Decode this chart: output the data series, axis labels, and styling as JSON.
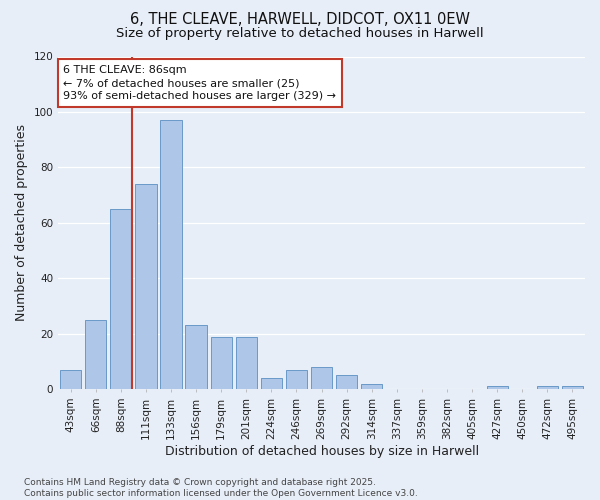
{
  "title": "6, THE CLEAVE, HARWELL, DIDCOT, OX11 0EW",
  "subtitle": "Size of property relative to detached houses in Harwell",
  "xlabel": "Distribution of detached houses by size in Harwell",
  "ylabel": "Number of detached properties",
  "categories": [
    "43sqm",
    "66sqm",
    "88sqm",
    "111sqm",
    "133sqm",
    "156sqm",
    "179sqm",
    "201sqm",
    "224sqm",
    "246sqm",
    "269sqm",
    "292sqm",
    "314sqm",
    "337sqm",
    "359sqm",
    "382sqm",
    "405sqm",
    "427sqm",
    "450sqm",
    "472sqm",
    "495sqm"
  ],
  "values": [
    7,
    25,
    65,
    74,
    97,
    23,
    19,
    19,
    4,
    7,
    8,
    5,
    2,
    0,
    0,
    0,
    0,
    1,
    0,
    1,
    1
  ],
  "bar_color": "#aec6e8",
  "bar_edge_color": "#5a8fc2",
  "property_label": "6 THE CLEAVE: 86sqm",
  "annotation_line1": "← 7% of detached houses are smaller (25)",
  "annotation_line2": "93% of semi-detached houses are larger (329) →",
  "vline_color": "#c0392b",
  "vline_x": 2.45,
  "ylim": [
    0,
    120
  ],
  "yticks": [
    0,
    20,
    40,
    60,
    80,
    100,
    120
  ],
  "background_color": "#e8eef8",
  "grid_color": "#ffffff",
  "box_color": "#c0392b",
  "footer": "Contains HM Land Registry data © Crown copyright and database right 2025.\nContains public sector information licensed under the Open Government Licence v3.0.",
  "title_fontsize": 10.5,
  "subtitle_fontsize": 9.5,
  "axis_label_fontsize": 9,
  "tick_fontsize": 7.5,
  "annotation_fontsize": 8,
  "footer_fontsize": 6.5
}
